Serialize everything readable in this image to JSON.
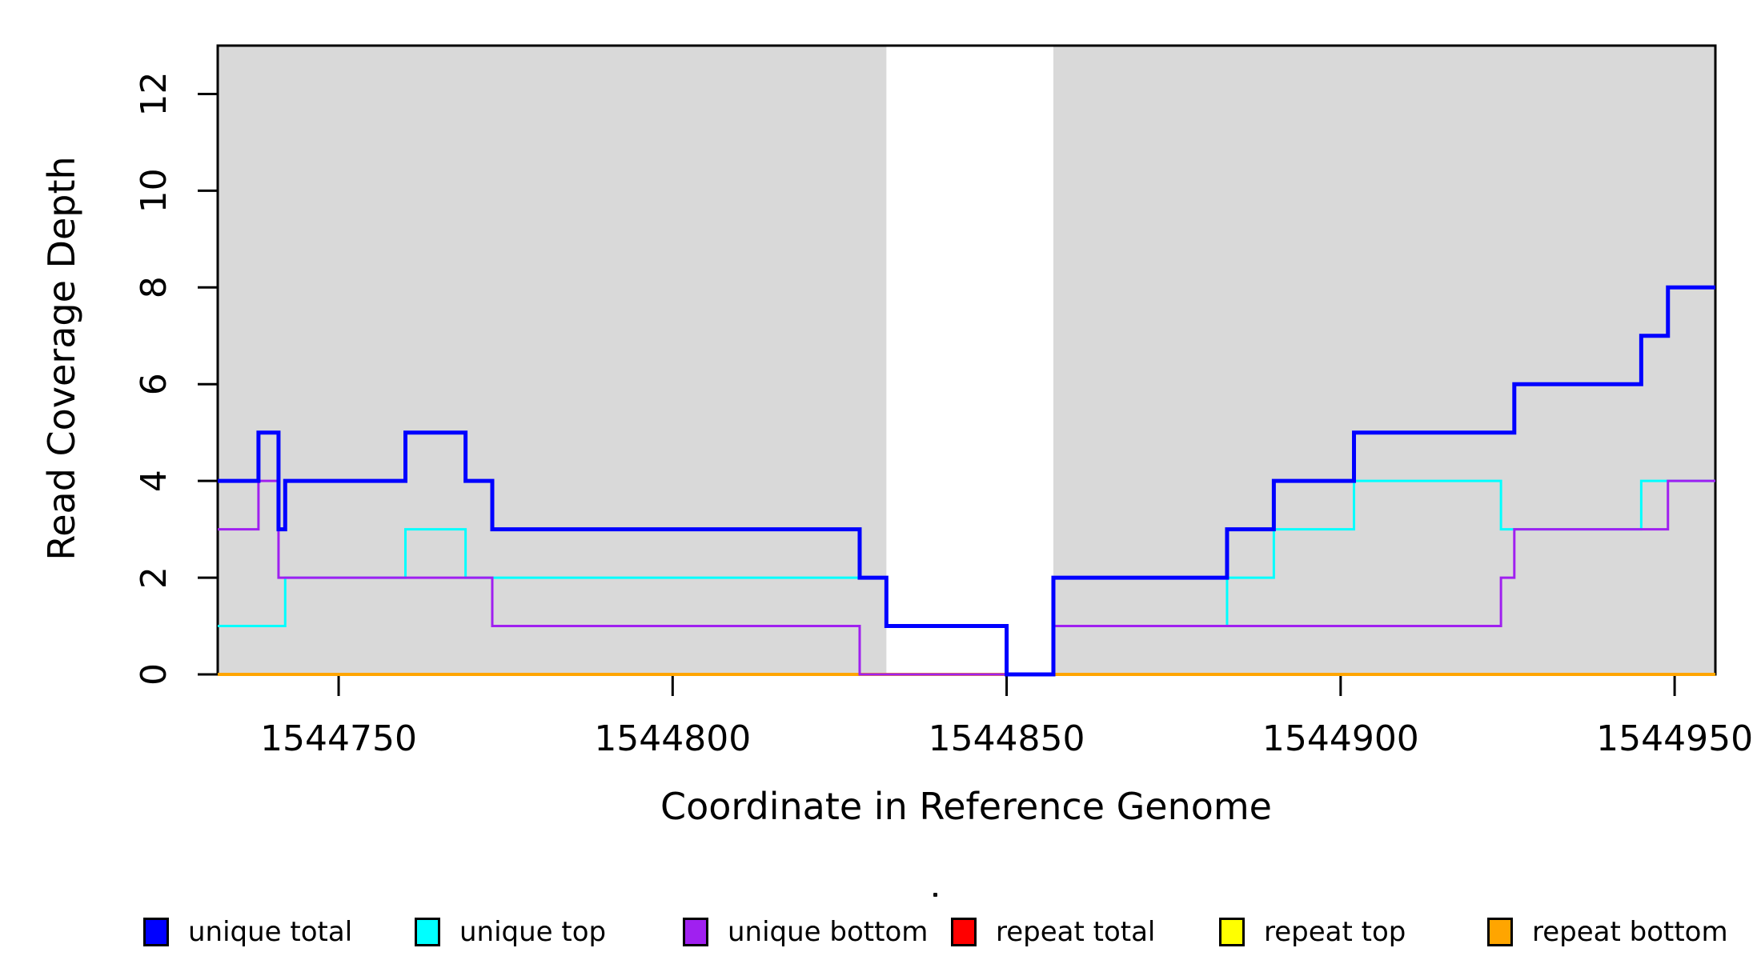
{
  "chart_data": {
    "type": "line",
    "step": true,
    "title": "",
    "xlabel": "Coordinate in Reference Genome",
    "ylabel": "Read Coverage Depth",
    "xlim": [
      1544731.9,
      1544956.1
    ],
    "ylim": [
      0,
      13
    ],
    "x_ticks": [
      1544750,
      1544800,
      1544850,
      1544900,
      1544950
    ],
    "y_ticks": [
      0,
      2,
      4,
      6,
      8,
      10,
      12
    ],
    "grid": false,
    "frame_color": "#000000",
    "shaded_regions": {
      "color": "#D9D9D9",
      "ranges": [
        [
          1544731.9,
          1544832
        ],
        [
          1544857,
          1544956.1
        ]
      ]
    },
    "series": [
      {
        "name": "unique total",
        "color": "#0000FF",
        "width": 5,
        "points": [
          [
            1544731.9,
            4
          ],
          [
            1544738,
            5
          ],
          [
            1544741,
            3
          ],
          [
            1544742,
            4
          ],
          [
            1544760,
            5
          ],
          [
            1544769,
            4
          ],
          [
            1544773,
            3
          ],
          [
            1544828,
            2
          ],
          [
            1544832,
            1
          ],
          [
            1544850,
            0
          ],
          [
            1544857,
            2
          ],
          [
            1544883,
            3
          ],
          [
            1544890,
            4
          ],
          [
            1544902,
            5
          ],
          [
            1544926,
            6
          ],
          [
            1544945,
            7
          ],
          [
            1544949,
            8
          ]
        ]
      },
      {
        "name": "unique top",
        "color": "#00FFFF",
        "width": 3,
        "points": [
          [
            1544731.9,
            1
          ],
          [
            1544742,
            2
          ],
          [
            1544760,
            3
          ],
          [
            1544769,
            2
          ],
          [
            1544832,
            1
          ],
          [
            1544850,
            0
          ],
          [
            1544857,
            1
          ],
          [
            1544883,
            2
          ],
          [
            1544890,
            3
          ],
          [
            1544902,
            4
          ],
          [
            1544924,
            3
          ],
          [
            1544945,
            4
          ]
        ]
      },
      {
        "name": "unique bottom",
        "color": "#A020F0",
        "width": 3,
        "points": [
          [
            1544731.9,
            3
          ],
          [
            1544738,
            4
          ],
          [
            1544741,
            2
          ],
          [
            1544773,
            1
          ],
          [
            1544828,
            0
          ],
          [
            1544857,
            1
          ],
          [
            1544924,
            2
          ],
          [
            1544926,
            3
          ],
          [
            1544949,
            4
          ]
        ]
      },
      {
        "name": "repeat total",
        "color": "#FF0000",
        "width": 3,
        "points": [
          [
            1544731.9,
            0
          ]
        ]
      },
      {
        "name": "repeat top",
        "color": "#FFFF00",
        "width": 3,
        "points": [
          [
            1544731.9,
            0
          ]
        ]
      },
      {
        "name": "repeat bottom",
        "color": "#FFA500",
        "width": 4,
        "points": [
          [
            1544731.9,
            0
          ]
        ]
      }
    ],
    "draw_order": [
      "repeat total",
      "repeat top",
      "repeat bottom",
      "unique top",
      "unique bottom",
      "unique total"
    ],
    "legend_position": "bottom"
  },
  "legend": {
    "items": [
      {
        "label": "unique total",
        "color": "#0000FF"
      },
      {
        "label": "unique top",
        "color": "#00FFFF"
      },
      {
        "label": "unique bottom",
        "color": "#A020F0"
      },
      {
        "label": "repeat total",
        "color": "#FF0000"
      },
      {
        "label": "repeat top",
        "color": "#FFFF00"
      },
      {
        "label": "repeat bottom",
        "color": "#FFA500"
      }
    ]
  }
}
